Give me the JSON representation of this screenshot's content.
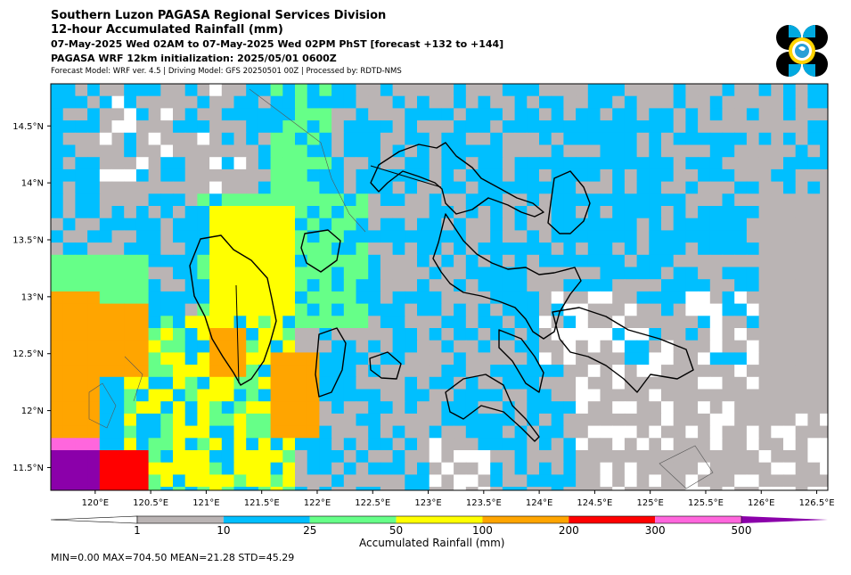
{
  "header": {
    "line1": "Southern Luzon PAGASA Regional Services Division",
    "line2": "12-hour Accumulated Rainfall (mm)",
    "line3": "07-May-2025 Wed 02AM to 07-May-2025 Wed 02PM PhST [forecast +132 to +144]",
    "line4": "PAGASA WRF 12km initialization: 2025/05/01 0600Z",
    "line5": "Forecast Model: WRF ver. 4.5 | Driving Model: GFS 20250501 00Z | Processed by: RDTD-NMS"
  },
  "map": {
    "lon_range": [
      119.6,
      126.6
    ],
    "lat_range": [
      11.3,
      14.87
    ],
    "lon_ticks": [
      "120°E",
      "120.5°E",
      "121°E",
      "121.5°E",
      "122°E",
      "122.5°E",
      "123°E",
      "123.5°E",
      "124°E",
      "124.5°E",
      "125°E",
      "125.5°E",
      "126°E",
      "126.5°E"
    ],
    "lon_tick_values": [
      120,
      120.5,
      121,
      121.5,
      122,
      122.5,
      123,
      123.5,
      124,
      124.5,
      125,
      125.5,
      126,
      126.5
    ],
    "lat_ticks": [
      "11.5°N",
      "12°N",
      "12.5°N",
      "13°N",
      "13.5°N",
      "14°N",
      "14.5°N"
    ],
    "lat_tick_values": [
      11.5,
      12,
      12.5,
      13,
      13.5,
      14,
      14.5
    ]
  },
  "colorbar": {
    "title": "Accumulated Rainfall (mm)",
    "labels": [
      "1",
      "10",
      "25",
      "50",
      "100",
      "200",
      "300",
      "500"
    ],
    "colors": [
      "#ffffff",
      "#bab4b4",
      "#00bfff",
      "#66ff88",
      "#ffff00",
      "#ffa500",
      "#ff0000",
      "#ff66dd",
      "#8b00aa"
    ]
  },
  "stats": "MIN=0.00   MAX=704.50   MEAN=21.28   STD=45.29"
}
